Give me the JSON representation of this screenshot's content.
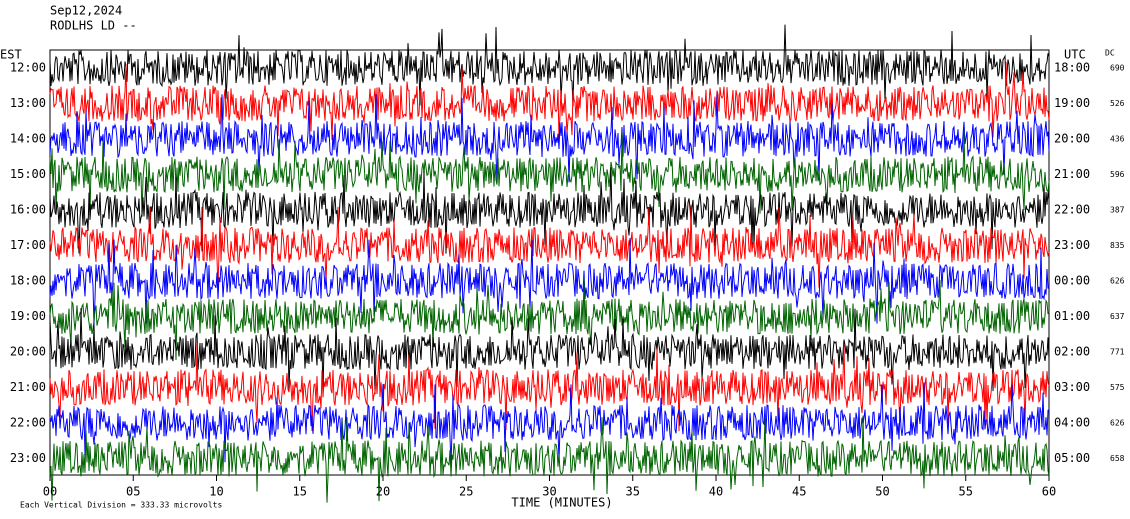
{
  "header": {
    "lines": [
      "Sep12,2024",
      "RODLHS LD --"
    ],
    "left_zone": "EST",
    "right_zone": "UTC",
    "dc_label": "DC"
  },
  "rows": [
    {
      "est": "12:00",
      "utc": "18:00",
      "dc": "690",
      "color": "#000000"
    },
    {
      "est": "13:00",
      "utc": "19:00",
      "dc": "526",
      "color": "#ff0000"
    },
    {
      "est": "14:00",
      "utc": "20:00",
      "dc": "436",
      "color": "#0000ff"
    },
    {
      "est": "15:00",
      "utc": "21:00",
      "dc": "596",
      "color": "#006400"
    },
    {
      "est": "16:00",
      "utc": "22:00",
      "dc": "387",
      "color": "#000000"
    },
    {
      "est": "17:00",
      "utc": "23:00",
      "dc": "835",
      "color": "#ff0000"
    },
    {
      "est": "18:00",
      "utc": "00:00",
      "dc": "626",
      "color": "#0000ff"
    },
    {
      "est": "19:00",
      "utc": "01:00",
      "dc": "637",
      "color": "#006400"
    },
    {
      "est": "20:00",
      "utc": "02:00",
      "dc": "771",
      "color": "#000000"
    },
    {
      "est": "21:00",
      "utc": "03:00",
      "dc": "575",
      "color": "#ff0000"
    },
    {
      "est": "22:00",
      "utc": "04:00",
      "dc": "626",
      "color": "#0000ff"
    },
    {
      "est": "23:00",
      "utc": "05:00",
      "dc": "658",
      "color": "#006400"
    }
  ],
  "x_axis": {
    "title": "TIME (MINUTES)",
    "ticks": [
      "00",
      "05",
      "10",
      "15",
      "20",
      "25",
      "30",
      "35",
      "40",
      "45",
      "50",
      "55",
      "60"
    ]
  },
  "footer": "Each Vertical Division =  333.33 microvolts"
}
